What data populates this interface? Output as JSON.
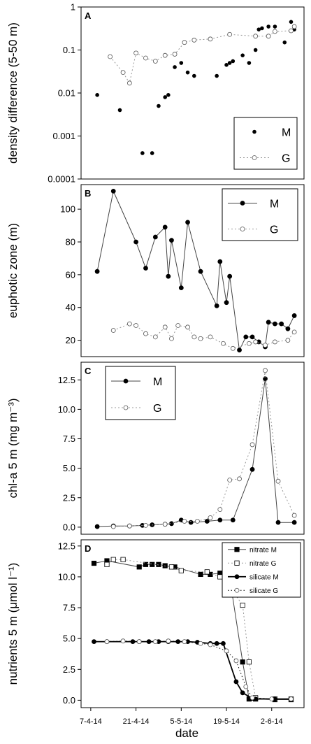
{
  "figure": {
    "xlabel": "date"
  },
  "chart_data": [
    {
      "panel": "A",
      "type": "scatter",
      "ylabel": "density difference (5-50 m)",
      "yscale": "log",
      "ylim": [
        0.0001,
        1
      ],
      "yticks": [
        "0.0001",
        "0.001",
        "0.01",
        "0.1",
        "1"
      ],
      "ytick_values": [
        0.0001,
        0.001,
        0.01,
        0.1,
        1
      ],
      "xticks": [
        "7-4-14",
        "21-4-14",
        "5-5-14",
        "19-5-14",
        "2-6-14"
      ],
      "legend_position": "bottom-right",
      "series": [
        {
          "name": "M",
          "style": "dots",
          "x": [
            "2014-04-09",
            "2014-04-16",
            "2014-04-23",
            "2014-04-26",
            "2014-04-28",
            "2014-04-30",
            "2014-05-01",
            "2014-05-03",
            "2014-05-05",
            "2014-05-07",
            "2014-05-09",
            "2014-05-14",
            "2014-05-16",
            "2014-05-19",
            "2014-05-20",
            "2014-05-21",
            "2014-05-24",
            "2014-05-26",
            "2014-05-28",
            "2014-05-29",
            "2014-05-30",
            "2014-06-01",
            "2014-06-03",
            "2014-06-06",
            "2014-06-08",
            "2014-06-09"
          ],
          "y": [
            0.009,
            0.004,
            0.0004,
            0.0004,
            0.005,
            0.008,
            0.009,
            0.04,
            0.05,
            0.03,
            0.025,
            0.18,
            0.025,
            0.045,
            0.05,
            0.055,
            0.075,
            0.05,
            0.1,
            0.3,
            0.32,
            0.35,
            0.35,
            0.15,
            0.45,
            0.3
          ]
        },
        {
          "name": "G",
          "style": "dotted-open",
          "x": [
            "2014-04-13",
            "2014-04-17",
            "2014-04-19",
            "2014-04-21",
            "2014-04-24",
            "2014-04-27",
            "2014-04-30",
            "2014-05-03",
            "2014-05-06",
            "2014-05-09",
            "2014-05-14",
            "2014-05-20",
            "2014-05-28",
            "2014-06-01",
            "2014-06-03",
            "2014-06-08",
            "2014-06-09"
          ],
          "y": [
            0.07,
            0.03,
            0.017,
            0.085,
            0.065,
            0.055,
            0.075,
            0.08,
            0.15,
            0.17,
            0.18,
            0.23,
            0.21,
            0.21,
            0.27,
            0.28,
            0.35
          ]
        }
      ]
    },
    {
      "panel": "B",
      "type": "line",
      "ylabel": "euphotic zone (m)",
      "ylim": [
        10,
        115
      ],
      "yticks": [
        "20",
        "40",
        "60",
        "80",
        "100"
      ],
      "ytick_values": [
        20,
        40,
        60,
        80,
        100
      ],
      "legend_position": "top-right",
      "series": [
        {
          "name": "M",
          "style": "solid-filled",
          "x": [
            "2014-04-09",
            "2014-04-14",
            "2014-04-21",
            "2014-04-24",
            "2014-04-27",
            "2014-04-30",
            "2014-05-01",
            "2014-05-02",
            "2014-05-05",
            "2014-05-07",
            "2014-05-11",
            "2014-05-16",
            "2014-05-17",
            "2014-05-19",
            "2014-05-20",
            "2014-05-23",
            "2014-05-25",
            "2014-05-27",
            "2014-05-29",
            "2014-05-31",
            "2014-06-01",
            "2014-06-03",
            "2014-06-05",
            "2014-06-07",
            "2014-06-09"
          ],
          "y": [
            62,
            111,
            80,
            64,
            83,
            89,
            59,
            81,
            52,
            92,
            62,
            41,
            68,
            43,
            59,
            14,
            22,
            22,
            19,
            16,
            31,
            30,
            30,
            27,
            35
          ]
        },
        {
          "name": "G",
          "style": "dotted-open",
          "x": [
            "2014-04-14",
            "2014-04-19",
            "2014-04-21",
            "2014-04-24",
            "2014-04-27",
            "2014-04-30",
            "2014-05-02",
            "2014-05-04",
            "2014-05-07",
            "2014-05-09",
            "2014-05-11",
            "2014-05-14",
            "2014-05-18",
            "2014-05-21",
            "2014-05-26",
            "2014-05-28",
            "2014-05-31",
            "2014-06-03",
            "2014-06-07",
            "2014-06-09"
          ],
          "y": [
            26,
            30,
            29,
            24,
            22,
            28,
            21,
            29,
            28,
            22,
            21,
            22,
            18,
            15,
            18,
            19,
            17,
            19,
            20,
            25
          ]
        }
      ]
    },
    {
      "panel": "C",
      "type": "line",
      "ylabel": "chl-a 5 m (mg m⁻³)",
      "ylim": [
        -0.6,
        14
      ],
      "yticks": [
        "0.0",
        "2.5",
        "5.0",
        "7.5",
        "10.0",
        "12.5"
      ],
      "ytick_values": [
        0,
        2.5,
        5,
        7.5,
        10,
        12.5
      ],
      "legend_position": "top-left",
      "series": [
        {
          "name": "M",
          "style": "solid-filled",
          "x": [
            "2014-04-09",
            "2014-04-14",
            "2014-04-19",
            "2014-04-23",
            "2014-04-26",
            "2014-04-30",
            "2014-05-02",
            "2014-05-05",
            "2014-05-08",
            "2014-05-13",
            "2014-05-17",
            "2014-05-21",
            "2014-05-27",
            "2014-05-31",
            "2014-06-04",
            "2014-06-09"
          ],
          "y": [
            0.05,
            0.1,
            0.1,
            0.15,
            0.2,
            0.25,
            0.3,
            0.6,
            0.4,
            0.5,
            0.6,
            0.6,
            4.9,
            12.6,
            0.4,
            0.4
          ]
        },
        {
          "name": "G",
          "style": "dotted-open",
          "x": [
            "2014-04-14",
            "2014-04-19",
            "2014-04-24",
            "2014-04-30",
            "2014-05-06",
            "2014-05-10",
            "2014-05-14",
            "2014-05-17",
            "2014-05-20",
            "2014-05-23",
            "2014-05-27",
            "2014-05-31",
            "2014-06-04",
            "2014-06-09"
          ],
          "y": [
            0.05,
            0.1,
            0.15,
            0.25,
            0.5,
            0.5,
            0.8,
            1.5,
            4.0,
            4.1,
            7.0,
            13.3,
            3.9,
            1.0
          ]
        }
      ]
    },
    {
      "panel": "D",
      "type": "line",
      "ylabel": "nutrients 5 m (μmol l⁻¹)",
      "ylim": [
        -0.6,
        13
      ],
      "yticks": [
        "0.0",
        "2.5",
        "5.0",
        "7.5",
        "10.0",
        "12.5"
      ],
      "ytick_values": [
        0,
        2.5,
        5,
        7.5,
        10,
        12.5
      ],
      "xticks": [
        "7-4-14",
        "21-4-14",
        "5-5-14",
        "19-5-14",
        "2-6-14"
      ],
      "legend_position": "top-right",
      "series": [
        {
          "name": "nitrate M",
          "style": "solid-filled-square",
          "x": [
            "2014-04-08",
            "2014-04-12",
            "2014-04-22",
            "2014-04-24",
            "2014-04-26",
            "2014-04-28",
            "2014-04-30",
            "2014-05-03",
            "2014-05-11",
            "2014-05-14",
            "2014-05-17",
            "2014-05-18",
            "2014-05-20",
            "2014-05-24",
            "2014-05-26",
            "2014-05-28",
            "2014-06-03",
            "2014-06-08"
          ],
          "y": [
            11.1,
            11.3,
            10.8,
            11.0,
            11.0,
            11.0,
            10.9,
            10.8,
            10.2,
            10.2,
            10.3,
            10.2,
            9.9,
            3.1,
            0.1,
            0.1,
            0.05,
            0.05
          ]
        },
        {
          "name": "nitrate G",
          "style": "dotted-open-square",
          "x": [
            "2014-04-12",
            "2014-04-14",
            "2014-04-17",
            "2014-05-02",
            "2014-05-05",
            "2014-05-13",
            "2014-05-17",
            "2014-05-20",
            "2014-05-24",
            "2014-05-26",
            "2014-05-28",
            "2014-06-03",
            "2014-06-08"
          ],
          "y": [
            11.0,
            11.4,
            11.4,
            10.8,
            10.5,
            10.4,
            10.0,
            9.2,
            7.7,
            3.1,
            0.2,
            0.1,
            0.1
          ]
        },
        {
          "name": "silicate M",
          "style": "solid-filled",
          "x": [
            "2014-04-08",
            "2014-04-12",
            "2014-04-20",
            "2014-04-22",
            "2014-04-25",
            "2014-04-28",
            "2014-05-01",
            "2014-05-04",
            "2014-05-07",
            "2014-05-10",
            "2014-05-14",
            "2014-05-16",
            "2014-05-18",
            "2014-05-22",
            "2014-05-24",
            "2014-05-27",
            "2014-05-28",
            "2014-06-03",
            "2014-06-08"
          ],
          "y": [
            4.75,
            4.75,
            4.75,
            4.75,
            4.75,
            4.75,
            4.75,
            4.75,
            4.75,
            4.7,
            4.6,
            4.6,
            4.6,
            1.5,
            0.6,
            0.15,
            0.1,
            0.1,
            0.1
          ]
        },
        {
          "name": "silicate G",
          "style": "dotted-open",
          "x": [
            "2014-04-12",
            "2014-04-17",
            "2014-04-22",
            "2014-04-27",
            "2014-05-01",
            "2014-05-06",
            "2014-05-11",
            "2014-05-14",
            "2014-05-19",
            "2014-05-22",
            "2014-05-25",
            "2014-05-27",
            "2014-06-02",
            "2014-06-08"
          ],
          "y": [
            4.75,
            4.8,
            4.75,
            4.75,
            4.8,
            4.75,
            4.6,
            4.5,
            4.0,
            3.2,
            1.1,
            0.2,
            0.1,
            0.1
          ]
        }
      ]
    }
  ]
}
